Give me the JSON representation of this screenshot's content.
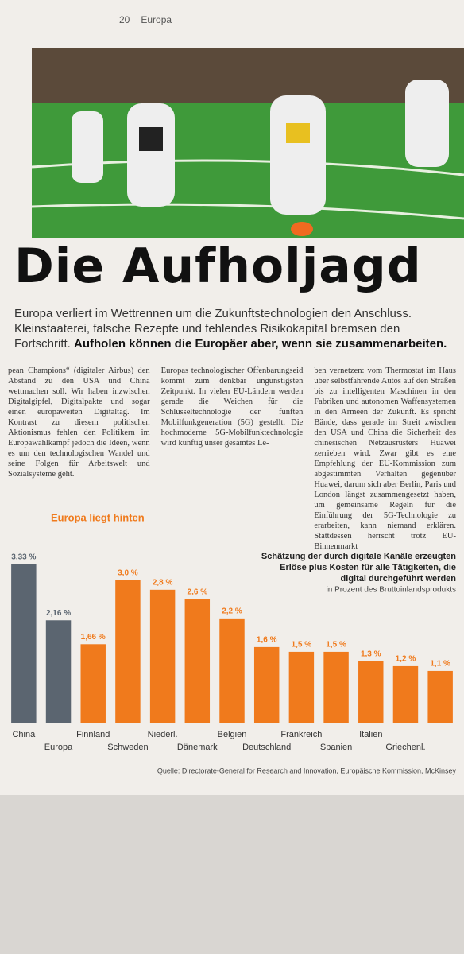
{
  "page_header": {
    "number": "20",
    "section": "Europa"
  },
  "headline": "Die Aufholjagd",
  "dek": "Europa verliert im Wettrennen um die Zukunftstechnologien den Anschluss. Kleinstaaterei, falsche Rezepte und fehlendes Risikokapital bremsen den Fortschritt.",
  "dek_bold": "Aufholen können die Europäer aber, wenn sie zusammenarbeiten.",
  "body": [
    "pean Champions“ (digitaler Airbus) den Abstand zu den USA und China wettmachen soll. Wir haben inzwischen Digitalgipfel, Digitalpakte und sogar einen europaweiten Digitaltag. Im Kontrast zu diesem politischen Aktionismus fehlen den Politikern im Europawahlkampf jedoch die Ideen, wenn es um den technologischen Wandel und seine Folgen für Arbeitswelt und Sozialsysteme geht.",
    "Europas technologischer Offenbarungseid kommt zum denkbar ungünstigsten Zeitpunkt. In vielen EU-Ländern werden gerade die Weichen für die Schlüsseltechnologie der fünften Mobilfunkgeneration (5G) gestellt. Die hochmoderne 5G-Mobilfunktechnologie wird künftig unser gesamtes Le-",
    "ben vernetzen: vom Thermostat im Haus über selbstfahrende Autos auf den Straßen bis zu intelligenten Maschinen in den Fabriken und autonomen Waffensystemen in den Armeen der Zukunft. Es spricht Bände, dass gerade im Streit zwischen den USA und China die Sicherheit des chinesischen Netzausrüsters Huawei zerrieben wird. Zwar gibt es eine Empfehlung der EU-Kommission zum abgestimmten Verhalten gegenüber Huawei, darum sich aber Berlin, Paris und London längst zusammengesetzt haben, um gemeinsame Regeln für die Einführung der 5G-Technologie zu erarbeiten, kann niemand erklären. Stattdessen herrscht trotz EU-Binnenmarkt"
  ],
  "chart_data": {
    "type": "bar",
    "title": "Europa liegt hinten",
    "subtitle": "Schätzung der durch digitale Kanäle erzeugten Erlöse plus Kosten für alle Tätigkeiten, die digital durchgeführt werden",
    "note": "in Prozent des Bruttoinlandsprodukts",
    "source": "Quelle: Directorate-General for Research and Innovation, Europäische Kommission, McKinsey",
    "categories": [
      "China",
      "Europa",
      "Finnland",
      "Schweden",
      "Niederl.",
      "Dänemark",
      "Belgien",
      "Deutschland",
      "Frankreich",
      "Spanien",
      "Italien",
      "Griechenl.",
      null
    ],
    "values": [
      3.33,
      2.16,
      1.66,
      3.0,
      2.8,
      2.6,
      2.2,
      1.6,
      1.5,
      1.5,
      1.3,
      1.2,
      1.1
    ],
    "value_labels": [
      "3,33 %",
      "2,16 %",
      "1,66 %",
      "3,0 %",
      "2,8 %",
      "2,6 %",
      "2,2 %",
      "1,6 %",
      "1,5 %",
      "1,5 %",
      "1,3 %",
      "1,2 %",
      "1,1 %"
    ],
    "colors": [
      "#5b6570",
      "#5b6570",
      "#f07a1c",
      "#f07a1c",
      "#f07a1c",
      "#f07a1c",
      "#f07a1c",
      "#f07a1c",
      "#f07a1c",
      "#f07a1c",
      "#f07a1c",
      "#f07a1c",
      "#f07a1c"
    ]
  }
}
